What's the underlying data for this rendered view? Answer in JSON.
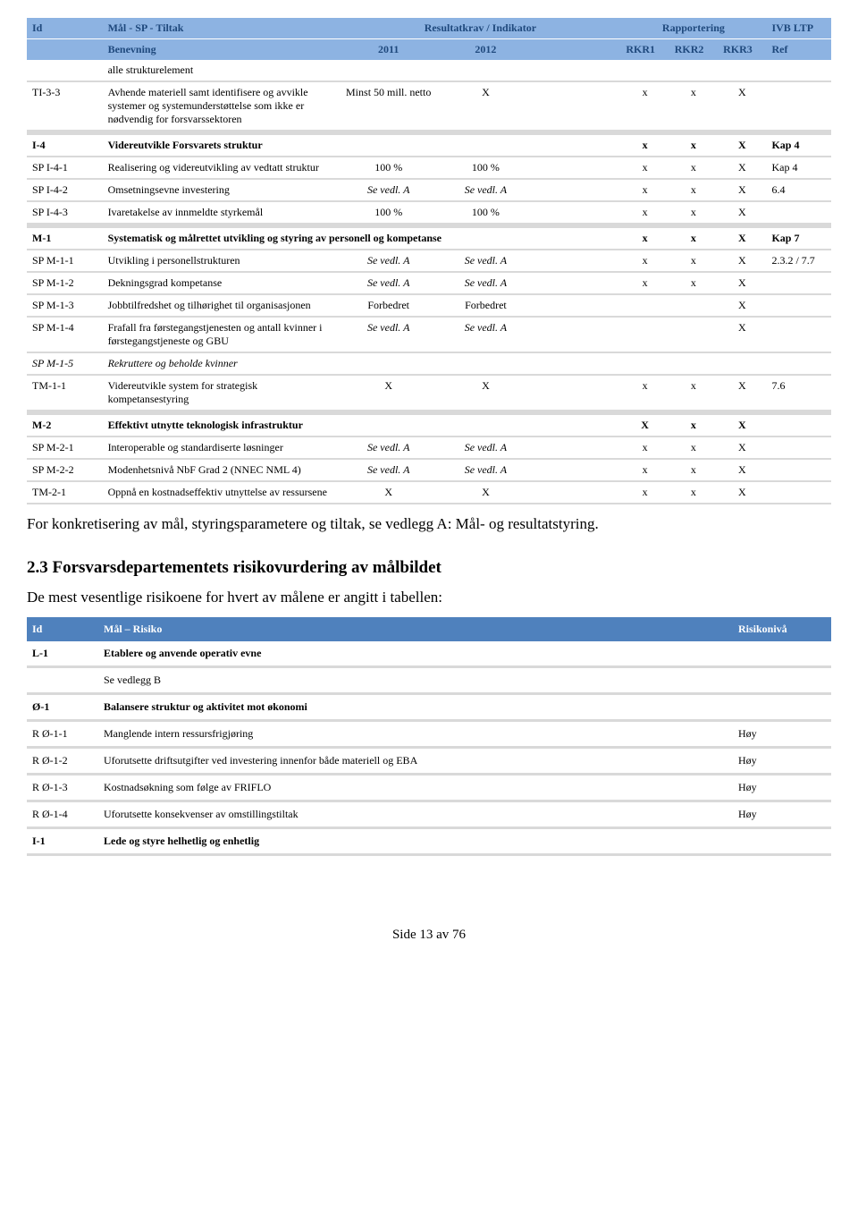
{
  "table1": {
    "header": {
      "id": "Id",
      "goal": "Mål - SP - Tiltak",
      "result": "Resultatkrav / Indikator",
      "report": "Rapportering",
      "ivb": "IVB LTP",
      "name": "Benevning",
      "y2011": "2011",
      "y2012": "2012",
      "rkr1": "RKR1",
      "rkr2": "RKR2",
      "rkr3": "RKR3",
      "ref": "Ref"
    },
    "rows": [
      {
        "id": "",
        "name": "alle strukturelement",
        "c2011": "",
        "c2012": "",
        "r1": "",
        "r2": "",
        "r3": "",
        "ref": ""
      },
      {
        "id": "TI-3-3",
        "name": "Avhende materiell samt identifisere og avvikle systemer og systemunderstøttelse som ikke er nødvendig for forsvarssektoren",
        "c2011": "Minst 50 mill. netto",
        "c2012": "X",
        "r1": "x",
        "r2": "x",
        "r3": "X",
        "ref": ""
      }
    ],
    "section_i4": {
      "id": "I-4",
      "name": "Videreutvikle Forsvarets struktur",
      "r1": "x",
      "r2": "x",
      "r3": "X",
      "ref": "Kap 4"
    },
    "i4rows": [
      {
        "id": "SP I-4-1",
        "name": "Realisering og videreutvikling av vedtatt struktur",
        "c2011": "100 %",
        "c2012": "100 %",
        "r1": "x",
        "r2": "x",
        "r3": "X",
        "ref": "Kap 4"
      },
      {
        "id": "SP I-4-2",
        "name": "Omsetningsevne investering",
        "c2011": "Se vedl. A",
        "c2012": "Se vedl. A",
        "r1": "x",
        "r2": "x",
        "r3": "X",
        "ref": "6.4",
        "italic2011": true,
        "italic2012": true
      },
      {
        "id": "SP I-4-3",
        "name": "Ivaretakelse av innmeldte styrkemål",
        "c2011": "100 %",
        "c2012": "100 %",
        "r1": "x",
        "r2": "x",
        "r3": "X",
        "ref": ""
      }
    ],
    "section_m1": {
      "id": "M-1",
      "name": "Systematisk og målrettet utvikling og styring av personell og kompetanse",
      "r1": "x",
      "r2": "x",
      "r3": "X",
      "ref": "Kap 7"
    },
    "m1rows": [
      {
        "id": "SP M-1-1",
        "name": "Utvikling i personellstrukturen",
        "c2011": "Se vedl. A",
        "c2012": "Se vedl. A",
        "r1": "x",
        "r2": "x",
        "r3": "X",
        "ref": "2.3.2 / 7.7",
        "italic2011": true,
        "italic2012": true
      },
      {
        "id": "SP M-1-2",
        "name": "Dekningsgrad kompetanse",
        "c2011": "Se vedl. A",
        "c2012": "Se vedl. A",
        "r1": "x",
        "r2": "x",
        "r3": "X",
        "ref": "",
        "italic2011": true,
        "italic2012": true
      },
      {
        "id": "SP M-1-3",
        "name": "Jobbtilfredshet og tilhørighet til organisasjonen",
        "c2011": "Forbedret",
        "c2012": "Forbedret",
        "r1": "",
        "r2": "",
        "r3": "X",
        "ref": ""
      },
      {
        "id": "SP M-1-4",
        "name": "Frafall fra førstegangstjenesten og antall kvinner i førstegangstjeneste og GBU",
        "c2011": "Se vedl. A",
        "c2012": "Se vedl. A",
        "r1": "",
        "r2": "",
        "r3": "X",
        "ref": "",
        "italic2011": true,
        "italic2012": true
      },
      {
        "id": "SP M-1-5",
        "name": "Rekruttere og beholde kvinner",
        "c2011": "",
        "c2012": "",
        "r1": "",
        "r2": "",
        "r3": "",
        "ref": "",
        "italicrow": true
      },
      {
        "id": "TM-1-1",
        "name": "Videreutvikle system for strategisk kompetansestyring",
        "c2011": "X",
        "c2012": "X",
        "r1": "x",
        "r2": "x",
        "r3": "X",
        "ref": "7.6"
      }
    ],
    "section_m2": {
      "id": "M-2",
      "name": "Effektivt utnytte teknologisk infrastruktur",
      "c2011": "",
      "c2012": "",
      "r1": "X",
      "r2": "x",
      "r3": "X",
      "ref": ""
    },
    "m2rows": [
      {
        "id": "SP M-2-1",
        "name": "Interoperable og standardiserte løsninger",
        "c2011": "Se vedl. A",
        "c2012": "Se vedl. A",
        "r1": "x",
        "r2": "x",
        "r3": "X",
        "ref": "",
        "italic2011": true,
        "italic2012": true
      },
      {
        "id": "SP M-2-2",
        "name": "Modenhetsnivå NbF Grad 2 (NNEC NML 4)",
        "c2011": "Se vedl. A",
        "c2012": "Se vedl. A",
        "r1": "x",
        "r2": "x",
        "r3": "X",
        "ref": "",
        "italic2011": true,
        "italic2012": true
      },
      {
        "id": "TM-2-1",
        "name": "Oppnå en kostnadseffektiv utnyttelse av ressursene",
        "c2011": "X",
        "c2012": "X",
        "r1": "x",
        "r2": "x",
        "r3": "X",
        "ref": ""
      }
    ]
  },
  "para1": "For konkretisering av mål, styringsparametere og tiltak, se vedlegg A: Mål- og resultatstyring.",
  "heading": "2.3 Forsvarsdepartementets risikovurdering av målbildet",
  "para2": "De mest vesentlige risikoene for hvert av målene er angitt i tabellen:",
  "risk": {
    "hdr_id": "Id",
    "hdr_goal": "Mål – Risiko",
    "hdr_level": "Risikonivå",
    "rows": [
      {
        "id": "L-1",
        "goal": "Etablere og anvende operativ evne",
        "level": "",
        "bold": true
      },
      {
        "id": "",
        "goal": "Se vedlegg B",
        "level": ""
      },
      {
        "id": "Ø-1",
        "goal": "Balansere struktur og aktivitet mot økonomi",
        "level": "",
        "bold": true
      },
      {
        "id": "R Ø-1-1",
        "goal": "Manglende intern ressursfrigjøring",
        "level": "Høy"
      },
      {
        "id": "R Ø-1-2",
        "goal": "Uforutsette driftsutgifter ved investering innenfor både materiell og EBA",
        "level": "Høy"
      },
      {
        "id": "R Ø-1-3",
        "goal": "Kostnadsøkning som følge av FRIFLO",
        "level": "Høy"
      },
      {
        "id": "R Ø-1-4",
        "goal": "Uforutsette konsekvenser av omstillingstiltak",
        "level": "Høy"
      },
      {
        "id": "I-1",
        "goal": "Lede og styre helhetlig og enhetlig",
        "level": "",
        "bold": true
      }
    ]
  },
  "footer": "Side 13 av 76"
}
